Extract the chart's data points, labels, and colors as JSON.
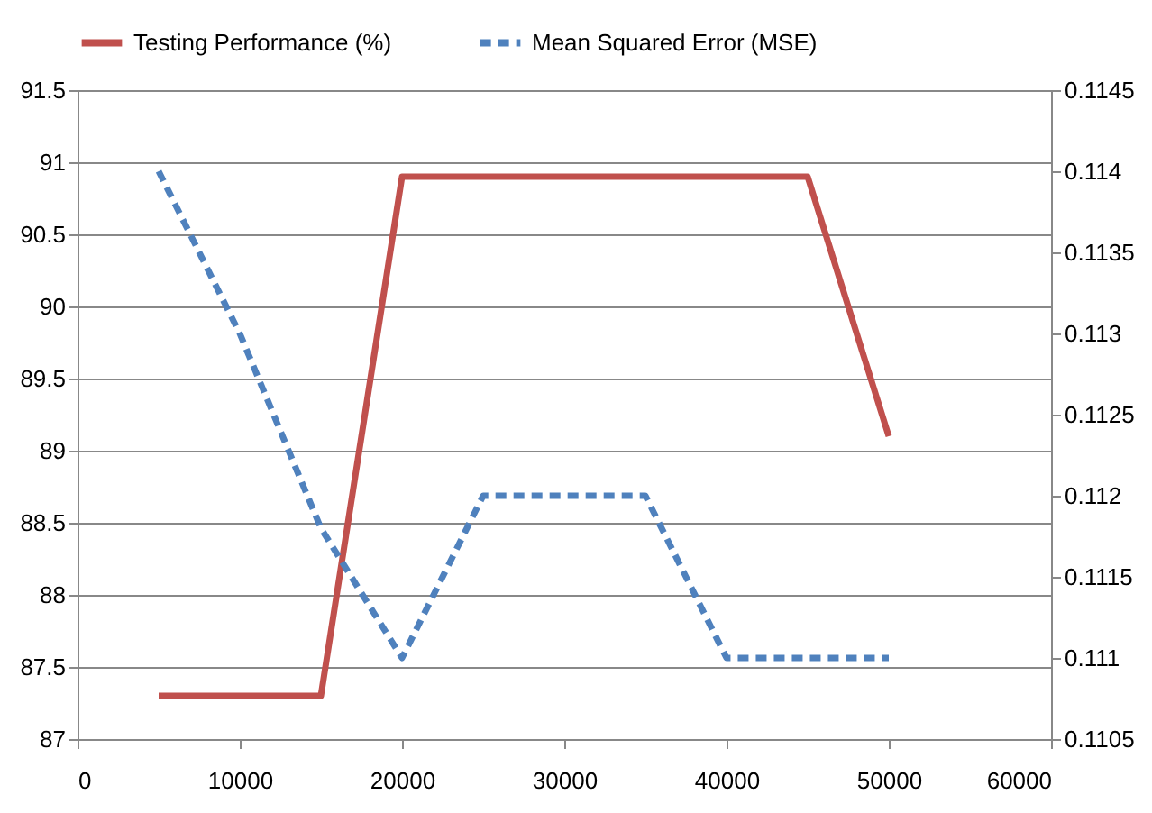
{
  "chart_data": {
    "type": "line",
    "x": [
      5000,
      10000,
      15000,
      20000,
      25000,
      30000,
      35000,
      40000,
      45000,
      50000
    ],
    "series": [
      {
        "name": "Testing Performance (%)",
        "color": "#c0504d",
        "values": [
          87.3,
          87.3,
          87.3,
          90.9,
          90.9,
          90.9,
          90.9,
          90.9,
          90.9,
          89.1
        ],
        "line_style": "solid"
      },
      {
        "name": "Mean Squared Error (MSE)",
        "color": "#4f81bd",
        "values": [
          0.114,
          0.113,
          0.1118,
          0.111,
          0.112,
          0.112,
          0.112,
          0.111,
          0.111,
          0.111
        ],
        "axis": "y2",
        "line_style": "dashed"
      }
    ],
    "xlim": [
      0,
      60000
    ],
    "xticks": [
      0,
      10000,
      20000,
      30000,
      40000,
      50000,
      60000
    ],
    "ylim": [
      87,
      91.5
    ],
    "yticks": [
      87,
      87.5,
      88,
      88.5,
      89,
      89.5,
      90,
      90.5,
      91,
      91.5
    ],
    "y2lim": [
      0.1105,
      0.1145
    ],
    "y2ticks": [
      0.1105,
      0.111,
      0.1115,
      0.112,
      0.1125,
      0.113,
      0.1135,
      0.114,
      0.1145
    ],
    "grid": "y",
    "legend": "top",
    "marker": "none"
  }
}
